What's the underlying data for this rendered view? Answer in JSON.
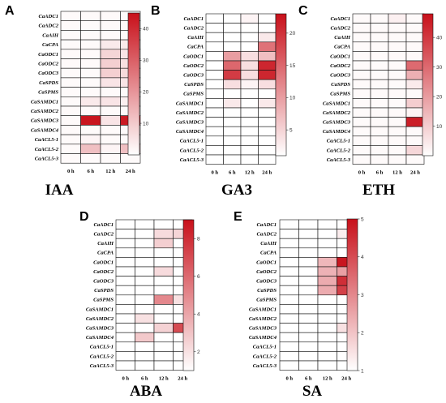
{
  "figure": {
    "genes": [
      "CaADC1",
      "CaADC2",
      "CaAIH",
      "CaCPA",
      "CaODC1",
      "CaODC2",
      "CaODC3",
      "CaSPDS",
      "CaSPMS",
      "CaSAMDC1",
      "CaSAMDC2",
      "CaSAMDC3",
      "CaSAMDC4",
      "CaACL5-1",
      "CaACL5-2",
      "CaACL5-3"
    ],
    "timepoints": [
      "0 h",
      "6 h",
      "12 h",
      "24 h"
    ],
    "colors": {
      "low": "#ffffff",
      "high": "#c8101a"
    }
  },
  "chart_data": [
    {
      "type": "heatmap",
      "panel": "A",
      "title": "IAA",
      "color_scale": {
        "min": 0,
        "max": 45,
        "ticks": [
          10,
          20,
          30,
          40
        ]
      },
      "rows": [
        "CaADC1",
        "CaADC2",
        "CaAIH",
        "CaCPA",
        "CaODC1",
        "CaODC2",
        "CaODC3",
        "CaSPDS",
        "CaSPMS",
        "CaSAMDC1",
        "CaSAMDC2",
        "CaSAMDC3",
        "CaSAMDC4",
        "CaACL5-1",
        "CaACL5-2",
        "CaACL5-3"
      ],
      "columns": [
        "0 h",
        "6 h",
        "12 h",
        "24 h"
      ],
      "values": [
        [
          1,
          1,
          1,
          1
        ],
        [
          1,
          1,
          1,
          1
        ],
        [
          1,
          1,
          1,
          1
        ],
        [
          1,
          1,
          4,
          4
        ],
        [
          1,
          1,
          8,
          5
        ],
        [
          1,
          1,
          9,
          6
        ],
        [
          1,
          1,
          9,
          7
        ],
        [
          1,
          1,
          5,
          5
        ],
        [
          1,
          1,
          1,
          1
        ],
        [
          1,
          4,
          5,
          3
        ],
        [
          1,
          1,
          1,
          1
        ],
        [
          1,
          44,
          5,
          43
        ],
        [
          1,
          1,
          1,
          1
        ],
        [
          1,
          2,
          1,
          1
        ],
        [
          1,
          12,
          2,
          12
        ],
        [
          1,
          1,
          1,
          1
        ]
      ]
    },
    {
      "type": "heatmap",
      "panel": "B",
      "title": "GA3",
      "color_scale": {
        "min": 1,
        "max": 23,
        "ticks": [
          5,
          10,
          15,
          20
        ]
      },
      "rows": [
        "CaADC1",
        "CaADC2",
        "CaAIH",
        "CaCPA",
        "CaODC1",
        "CaODC2",
        "CaODC3",
        "CaSPDS",
        "CaSPMS",
        "CaSAMDC1",
        "CaSAMDC2",
        "CaSAMDC3",
        "CaSAMDC4",
        "CaACL5-1",
        "CaACL5-2",
        "CaACL5-3"
      ],
      "columns": [
        "0 h",
        "6 h",
        "12 h",
        "24 h"
      ],
      "values": [
        [
          1,
          1,
          2,
          1
        ],
        [
          1,
          1,
          1,
          1
        ],
        [
          1,
          1,
          1,
          3
        ],
        [
          1,
          1,
          1,
          14
        ],
        [
          1,
          10,
          4,
          7
        ],
        [
          1,
          15,
          4,
          21
        ],
        [
          1,
          19,
          4,
          21
        ],
        [
          1,
          4,
          2,
          4
        ],
        [
          1,
          1,
          1,
          1
        ],
        [
          1,
          3,
          1,
          3
        ],
        [
          1,
          1,
          1,
          1
        ],
        [
          1,
          1,
          1,
          1
        ],
        [
          1,
          1,
          1,
          1
        ],
        [
          1,
          1,
          1,
          1
        ],
        [
          1,
          1,
          1,
          1
        ],
        [
          1,
          1,
          1,
          1
        ]
      ]
    },
    {
      "type": "heatmap",
      "panel": "C",
      "title": "ETH",
      "color_scale": {
        "min": 0,
        "max": 48,
        "ticks": [
          10,
          20,
          30,
          40
        ]
      },
      "rows": [
        "CaADC1",
        "CaADC2",
        "CaAIH",
        "CaCPA",
        "CaODC1",
        "CaODC2",
        "CaODC3",
        "CaSPDS",
        "CaSPMS",
        "CaSAMDC1",
        "CaSAMDC2",
        "CaSAMDC3",
        "CaSAMDC4",
        "CaACL5-1",
        "CaACL5-2",
        "CaACL5-3"
      ],
      "columns": [
        "0 h",
        "6 h",
        "12 h",
        "24 h"
      ],
      "values": [
        [
          1,
          1,
          3,
          1
        ],
        [
          1,
          1,
          1,
          1
        ],
        [
          1,
          1,
          1,
          1
        ],
        [
          1,
          1,
          1,
          1
        ],
        [
          1,
          1,
          1,
          1
        ],
        [
          1,
          1,
          1,
          30
        ],
        [
          1,
          1,
          1,
          16
        ],
        [
          1,
          1,
          1,
          4
        ],
        [
          1,
          1,
          1,
          1
        ],
        [
          1,
          1,
          1,
          10
        ],
        [
          1,
          1,
          1,
          2
        ],
        [
          1,
          1,
          1,
          45
        ],
        [
          1,
          1,
          1,
          1
        ],
        [
          1,
          1,
          1,
          1
        ],
        [
          1,
          1,
          1,
          8
        ],
        [
          1,
          1,
          1,
          1
        ]
      ]
    },
    {
      "type": "heatmap",
      "panel": "D",
      "title": "ABA",
      "color_scale": {
        "min": 1,
        "max": 9,
        "ticks": [
          2,
          4,
          6,
          8
        ]
      },
      "rows": [
        "CaADC1",
        "CaADC2",
        "CaAIH",
        "CaCPA",
        "CaODC1",
        "CaODC2",
        "CaODC3",
        "CaSPDS",
        "CaSPMS",
        "CaSAMDC1",
        "CaSAMDC2",
        "CaSAMDC3",
        "CaSAMDC4",
        "CaACL5-1",
        "CaACL5-2",
        "CaACL5-3"
      ],
      "columns": [
        "0 h",
        "6 h",
        "12 h",
        "24 h"
      ],
      "values": [
        [
          1,
          1,
          1,
          1
        ],
        [
          1,
          1,
          2.2,
          2.4
        ],
        [
          1,
          1,
          2.6,
          1
        ],
        [
          1,
          1,
          1,
          1
        ],
        [
          1,
          1,
          1,
          1
        ],
        [
          1,
          1,
          2.2,
          1
        ],
        [
          1,
          1,
          1,
          1
        ],
        [
          1,
          1,
          1,
          1
        ],
        [
          1,
          1,
          5,
          2
        ],
        [
          1,
          1,
          1,
          1
        ],
        [
          1,
          2,
          1,
          1
        ],
        [
          1,
          1,
          2.5,
          7
        ],
        [
          1,
          2.8,
          1,
          1
        ],
        [
          1,
          1,
          1,
          1
        ],
        [
          1,
          1,
          1,
          1
        ],
        [
          1,
          1,
          1,
          1
        ]
      ]
    },
    {
      "type": "heatmap",
      "panel": "E",
      "title": "SA",
      "color_scale": {
        "min": 1,
        "max": 5,
        "ticks": [
          1,
          2,
          3,
          4,
          5
        ]
      },
      "rows": [
        "CaADC1",
        "CaADC2",
        "CaAIH",
        "CaCPA",
        "CaODC1",
        "CaODC2",
        "CaODC3",
        "CaSPDS",
        "CaSPMS",
        "CaSAMDC1",
        "CaSAMDC2",
        "CaSAMDC3",
        "CaSAMDC4",
        "CaACL5-1",
        "CaACL5-2",
        "CaACL5-3"
      ],
      "columns": [
        "0 h",
        "6 h",
        "12 h",
        "24 h"
      ],
      "values": [
        [
          1,
          1,
          1,
          1
        ],
        [
          1,
          1,
          1,
          1.3
        ],
        [
          1,
          1,
          1,
          1
        ],
        [
          1,
          1,
          1,
          1
        ],
        [
          1,
          1,
          2.2,
          4.9
        ],
        [
          1,
          1,
          2.3,
          2.6
        ],
        [
          1,
          1,
          2.4,
          4.5
        ],
        [
          1,
          1,
          2.4,
          4.2
        ],
        [
          1,
          1,
          1,
          1
        ],
        [
          1,
          1,
          1,
          1
        ],
        [
          1,
          1,
          1,
          1
        ],
        [
          1,
          1,
          1,
          1.5
        ],
        [
          1,
          1,
          1,
          1
        ],
        [
          1,
          1,
          1,
          1
        ],
        [
          1,
          1,
          1,
          1
        ],
        [
          1,
          1,
          1,
          1
        ]
      ]
    }
  ]
}
